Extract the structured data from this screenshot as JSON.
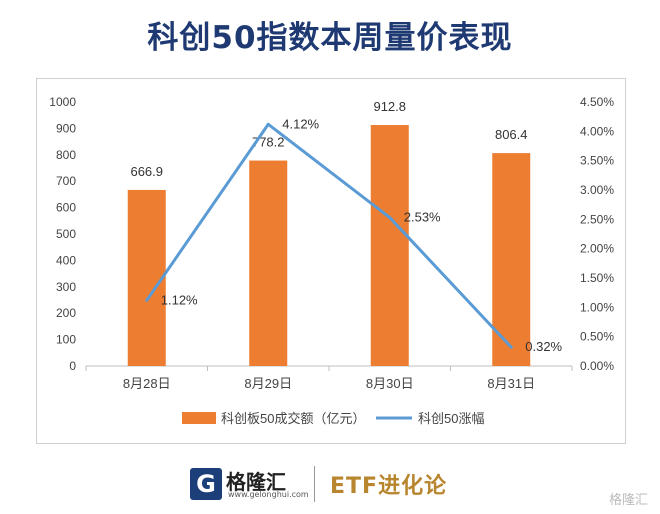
{
  "title": "科创50指数本周量价表现",
  "chart_data": {
    "type": "bar+line",
    "categories": [
      "8月28日",
      "8月29日",
      "8月30日",
      "8月31日"
    ],
    "series": [
      {
        "name": "科创板50成交额（亿元）",
        "type": "bar",
        "axis": "left",
        "color": "#ed7d31",
        "values": [
          666.9,
          778.2,
          912.8,
          806.4
        ],
        "labels": [
          "666.9",
          "778.2",
          "912.8",
          "806.4"
        ]
      },
      {
        "name": "科创50涨幅",
        "type": "line",
        "axis": "right",
        "color": "#5b9bd5",
        "values": [
          1.12,
          4.12,
          2.53,
          0.32
        ],
        "labels": [
          "1.12%",
          "4.12%",
          "2.53%",
          "0.32%"
        ]
      }
    ],
    "left_axis": {
      "min": 0,
      "max": 1000,
      "ticks": [
        "0",
        "100",
        "200",
        "300",
        "400",
        "500",
        "600",
        "700",
        "800",
        "900",
        "1000"
      ]
    },
    "right_axis": {
      "min": 0,
      "max": 4.5,
      "ticks": [
        "0.00%",
        "0.50%",
        "1.00%",
        "1.50%",
        "2.00%",
        "2.50%",
        "3.00%",
        "3.50%",
        "4.00%",
        "4.50%"
      ]
    },
    "grid": false,
    "legend_position": "bottom"
  },
  "footer": {
    "logo_letter": "G",
    "brand": "格隆汇",
    "url": "www.gelonghui.com",
    "tagline": "ETF进化论",
    "watermark": "格隆汇"
  }
}
